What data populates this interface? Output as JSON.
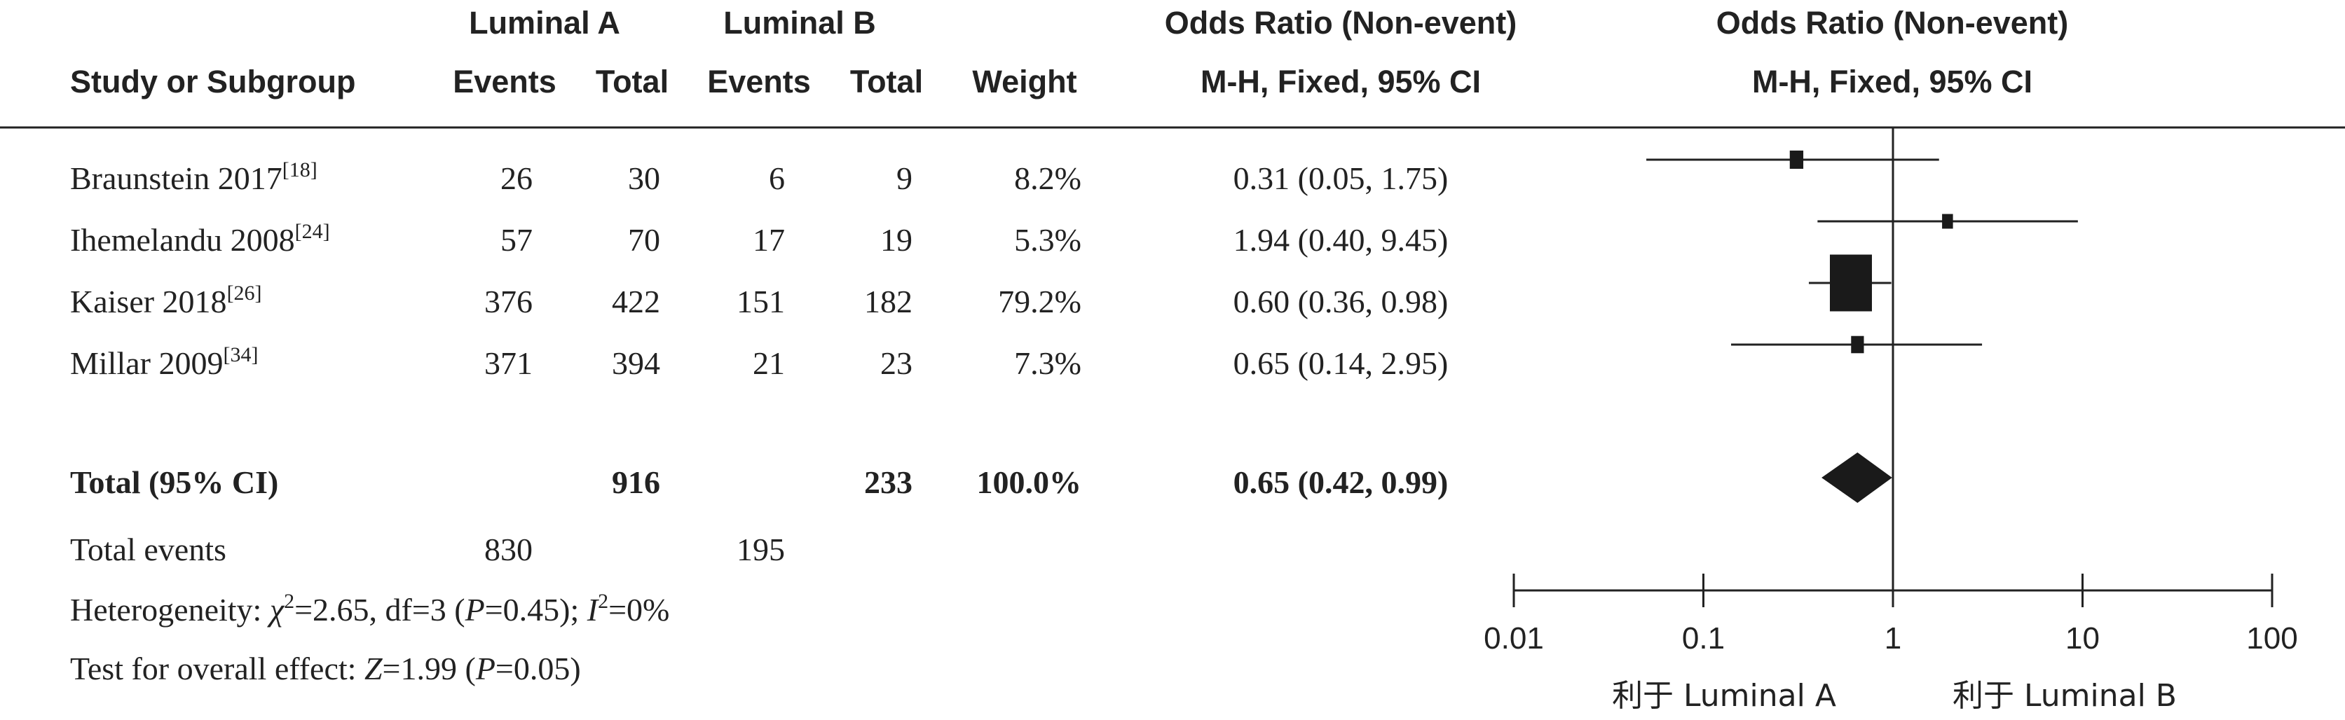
{
  "chart_data": {
    "type": "forest",
    "header": {
      "group1": "Luminal A",
      "group2": "Luminal B",
      "col_study": "Study or Subgroup",
      "col_events": "Events",
      "col_total": "Total",
      "col_weight": "Weight",
      "or_title": "Odds Ratio (Non-event)",
      "or_method": "M-H, Fixed, 95% CI"
    },
    "studies": [
      {
        "name": "Braunstein 2017",
        "ref": "[18]",
        "events_a": "26",
        "total_a": "30",
        "events_b": "6",
        "total_b": "9",
        "weight": "8.2%",
        "weight_value": 8.2,
        "or_text": "0.31 (0.05, 1.75)",
        "or": 0.31,
        "lo": 0.05,
        "hi": 1.75
      },
      {
        "name": "Ihemelandu 2008",
        "ref": "[24]",
        "events_a": "57",
        "total_a": "70",
        "events_b": "17",
        "total_b": "19",
        "weight": "5.3%",
        "weight_value": 5.3,
        "or_text": "1.94 (0.40, 9.45)",
        "or": 1.94,
        "lo": 0.4,
        "hi": 9.45
      },
      {
        "name": "Kaiser 2018",
        "ref": "[26]",
        "events_a": "376",
        "total_a": "422",
        "events_b": "151",
        "total_b": "182",
        "weight": "79.2%",
        "weight_value": 79.2,
        "or_text": "0.60 (0.36, 0.98)",
        "or": 0.6,
        "lo": 0.36,
        "hi": 0.98
      },
      {
        "name": "Millar 2009",
        "ref": "[34]",
        "events_a": "371",
        "total_a": "394",
        "events_b": "21",
        "total_b": "23",
        "weight": "7.3%",
        "weight_value": 7.3,
        "or_text": "0.65 (0.14, 2.95)",
        "or": 0.65,
        "lo": 0.14,
        "hi": 2.95
      }
    ],
    "total": {
      "label": "Total (95% CI)",
      "total_a": "916",
      "total_b": "233",
      "weight": "100.0%",
      "or_text": "0.65 (0.42, 0.99)",
      "or": 0.65,
      "lo": 0.42,
      "hi": 0.99
    },
    "total_events": {
      "label": "Total events",
      "events_a": "830",
      "events_b": "195"
    },
    "heterogeneity": {
      "prefix": "Heterogeneity: ",
      "chi_sym": "χ",
      "chi_sup": "2",
      "chi_val": "=2.65, df=3 (",
      "p_sym": "P",
      "p_val": "=0.45); ",
      "i_sym": "I",
      "i_sup": "2",
      "i_val": "=0%"
    },
    "overall": {
      "prefix": "Test for overall effect: ",
      "z_sym": "Z",
      "z_val": "=1.99 (",
      "p_sym": "P",
      "p_val": "=0.05)"
    },
    "axis": {
      "scale": "log",
      "xlim": [
        0.01,
        100
      ],
      "ticks": [
        0.01,
        0.1,
        1,
        10,
        100
      ],
      "tick_labels": [
        "0.01",
        "0.1",
        "1",
        "10",
        "100"
      ]
    },
    "favours": {
      "left": "利于 Luminal A",
      "right": "利于 Luminal B"
    },
    "colors": {
      "text": "#222222",
      "marker": "#1a1a1a",
      "line": "#222222"
    }
  }
}
